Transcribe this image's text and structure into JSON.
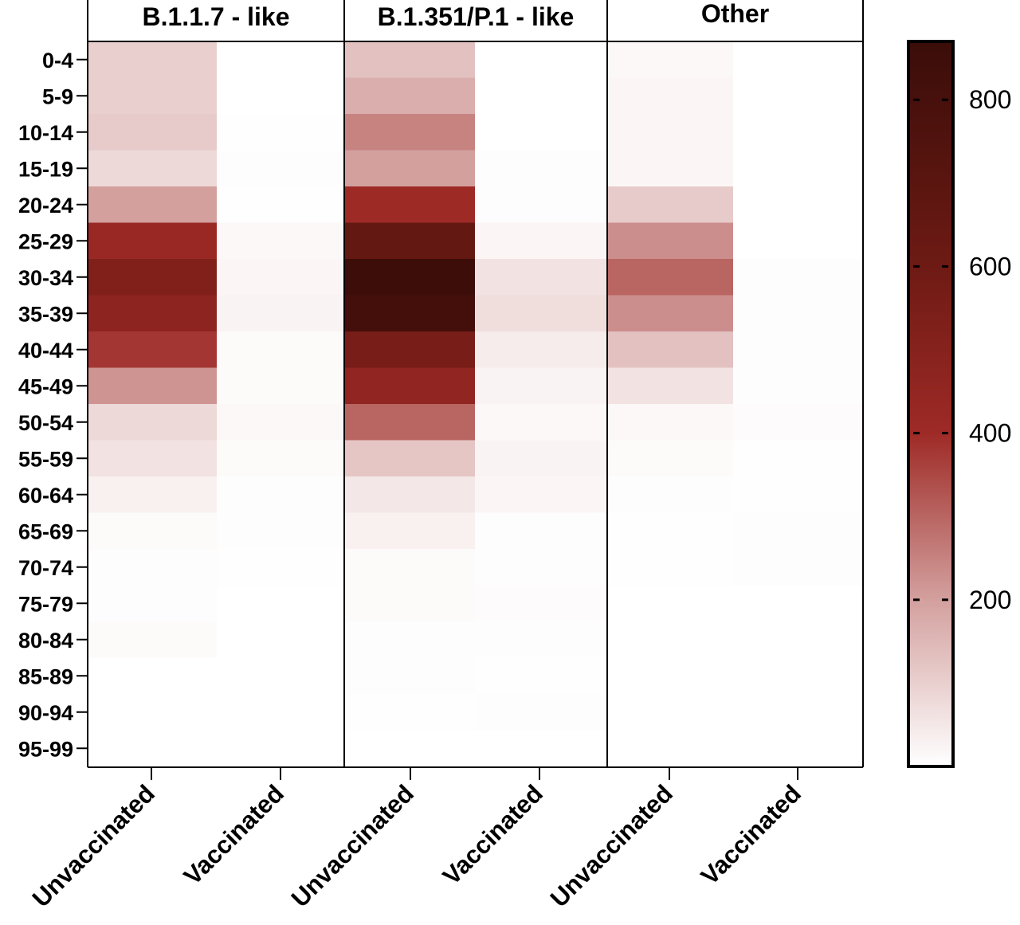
{
  "chart_data": {
    "type": "heatmap",
    "panels": [
      {
        "title": "B.1.1.7 - like"
      },
      {
        "title": "B.1.351/P.1 - like"
      },
      {
        "title": "Other"
      }
    ],
    "columns": [
      "Unvaccinated",
      "Vaccinated",
      "Unvaccinated",
      "Vaccinated",
      "Unvaccinated",
      "Vaccinated"
    ],
    "rows": [
      "0-4",
      "5-9",
      "10-14",
      "15-19",
      "20-24",
      "25-29",
      "30-34",
      "35-39",
      "40-44",
      "45-49",
      "50-54",
      "55-59",
      "60-64",
      "65-69",
      "70-74",
      "75-79",
      "80-84",
      "85-89",
      "90-94",
      "95-99"
    ],
    "values": [
      [
        100,
        0,
        130,
        0,
        15,
        0
      ],
      [
        100,
        0,
        170,
        0,
        20,
        0
      ],
      [
        110,
        3,
        250,
        0,
        20,
        0
      ],
      [
        80,
        5,
        200,
        5,
        20,
        0
      ],
      [
        200,
        3,
        400,
        5,
        110,
        0
      ],
      [
        420,
        15,
        650,
        20,
        230,
        0
      ],
      [
        520,
        20,
        860,
        60,
        300,
        5
      ],
      [
        470,
        25,
        820,
        70,
        230,
        5
      ],
      [
        380,
        10,
        560,
        40,
        130,
        5
      ],
      [
        220,
        10,
        460,
        25,
        60,
        5
      ],
      [
        80,
        15,
        300,
        15,
        15,
        8
      ],
      [
        60,
        10,
        120,
        25,
        10,
        3
      ],
      [
        30,
        5,
        50,
        20,
        5,
        3
      ],
      [
        10,
        5,
        30,
        5,
        3,
        5
      ],
      [
        5,
        3,
        10,
        5,
        3,
        5
      ],
      [
        5,
        0,
        10,
        8,
        0,
        0
      ],
      [
        10,
        0,
        5,
        5,
        0,
        0
      ],
      [
        0,
        0,
        5,
        3,
        0,
        0
      ],
      [
        0,
        0,
        3,
        5,
        0,
        0
      ],
      [
        0,
        0,
        0,
        0,
        0,
        0
      ]
    ],
    "colorbar": {
      "range": [
        0,
        870
      ],
      "ticks": [
        200,
        400,
        600,
        800
      ],
      "stops": [
        {
          "v": 0,
          "color": "#ffffff"
        },
        {
          "v": 200,
          "color": "#d3a09e"
        },
        {
          "v": 400,
          "color": "#9e2a26"
        },
        {
          "v": 600,
          "color": "#6e1a14"
        },
        {
          "v": 870,
          "color": "#3a0d09"
        }
      ]
    },
    "grid": false
  }
}
